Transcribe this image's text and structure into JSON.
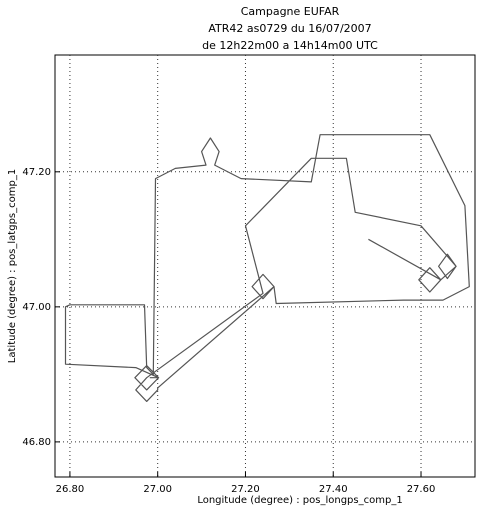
{
  "chart_data": {
    "type": "line",
    "title": [
      "Campagne EUFAR",
      "ATR42 as0729 du 16/07/2007",
      "de 12h22m00 a 14h14m00 UTC"
    ],
    "xlabel": "Longitude (degree) : pos_longps_comp_1",
    "ylabel": "Latitude (degree) : pos_latgps_comp_1",
    "x": [
      26.982,
      27.002,
      26.975,
      26.948,
      26.975,
      27.002,
      26.95,
      26.79,
      26.79,
      26.8,
      26.97,
      26.975,
      26.99,
      26.995,
      27.04,
      27.11,
      27.1,
      27.12,
      27.14,
      27.13,
      27.19,
      27.35,
      27.37,
      27.62,
      27.7,
      27.71,
      27.65,
      27.56,
      27.27,
      27.265,
      27.24,
      27.215,
      27.24,
      27.265,
      27.0,
      27.0,
      26.975,
      26.95,
      26.975,
      27.24,
      27.2,
      27.35,
      27.43,
      27.45,
      27.6,
      27.68,
      27.66,
      27.64,
      27.66,
      27.68,
      27.645,
      27.62,
      27.595,
      27.62,
      27.645,
      27.48
    ],
    "values": [
      46.895,
      46.895,
      46.913,
      46.895,
      46.877,
      46.895,
      46.91,
      46.915,
      47.0,
      47.003,
      47.003,
      46.91,
      46.9,
      47.19,
      47.205,
      47.21,
      47.23,
      47.25,
      47.23,
      47.21,
      47.19,
      47.185,
      47.255,
      47.255,
      47.15,
      47.03,
      47.01,
      47.01,
      47.005,
      47.03,
      47.048,
      47.03,
      47.012,
      47.03,
      46.88,
      46.877,
      46.86,
      46.877,
      46.895,
      47.02,
      47.12,
      47.22,
      47.22,
      47.14,
      47.12,
      47.06,
      47.078,
      47.06,
      47.042,
      47.06,
      47.04,
      47.058,
      47.04,
      47.022,
      47.04,
      47.1
    ],
    "color": "#555555",
    "xlim": [
      26.766,
      27.723
    ],
    "ylim": [
      46.748,
      47.373
    ],
    "xticks": [
      {
        "value": 26.8,
        "label": "26.80"
      },
      {
        "value": 27.0,
        "label": "27.00"
      },
      {
        "value": 27.2,
        "label": "27.20"
      },
      {
        "value": 27.4,
        "label": "27.40"
      },
      {
        "value": 27.6,
        "label": "27.60"
      }
    ],
    "yticks": [
      {
        "value": 46.8,
        "label": "46.80"
      },
      {
        "value": 47.0,
        "label": "47.00"
      },
      {
        "value": 47.2,
        "label": "47.20"
      }
    ],
    "grid": true
  }
}
